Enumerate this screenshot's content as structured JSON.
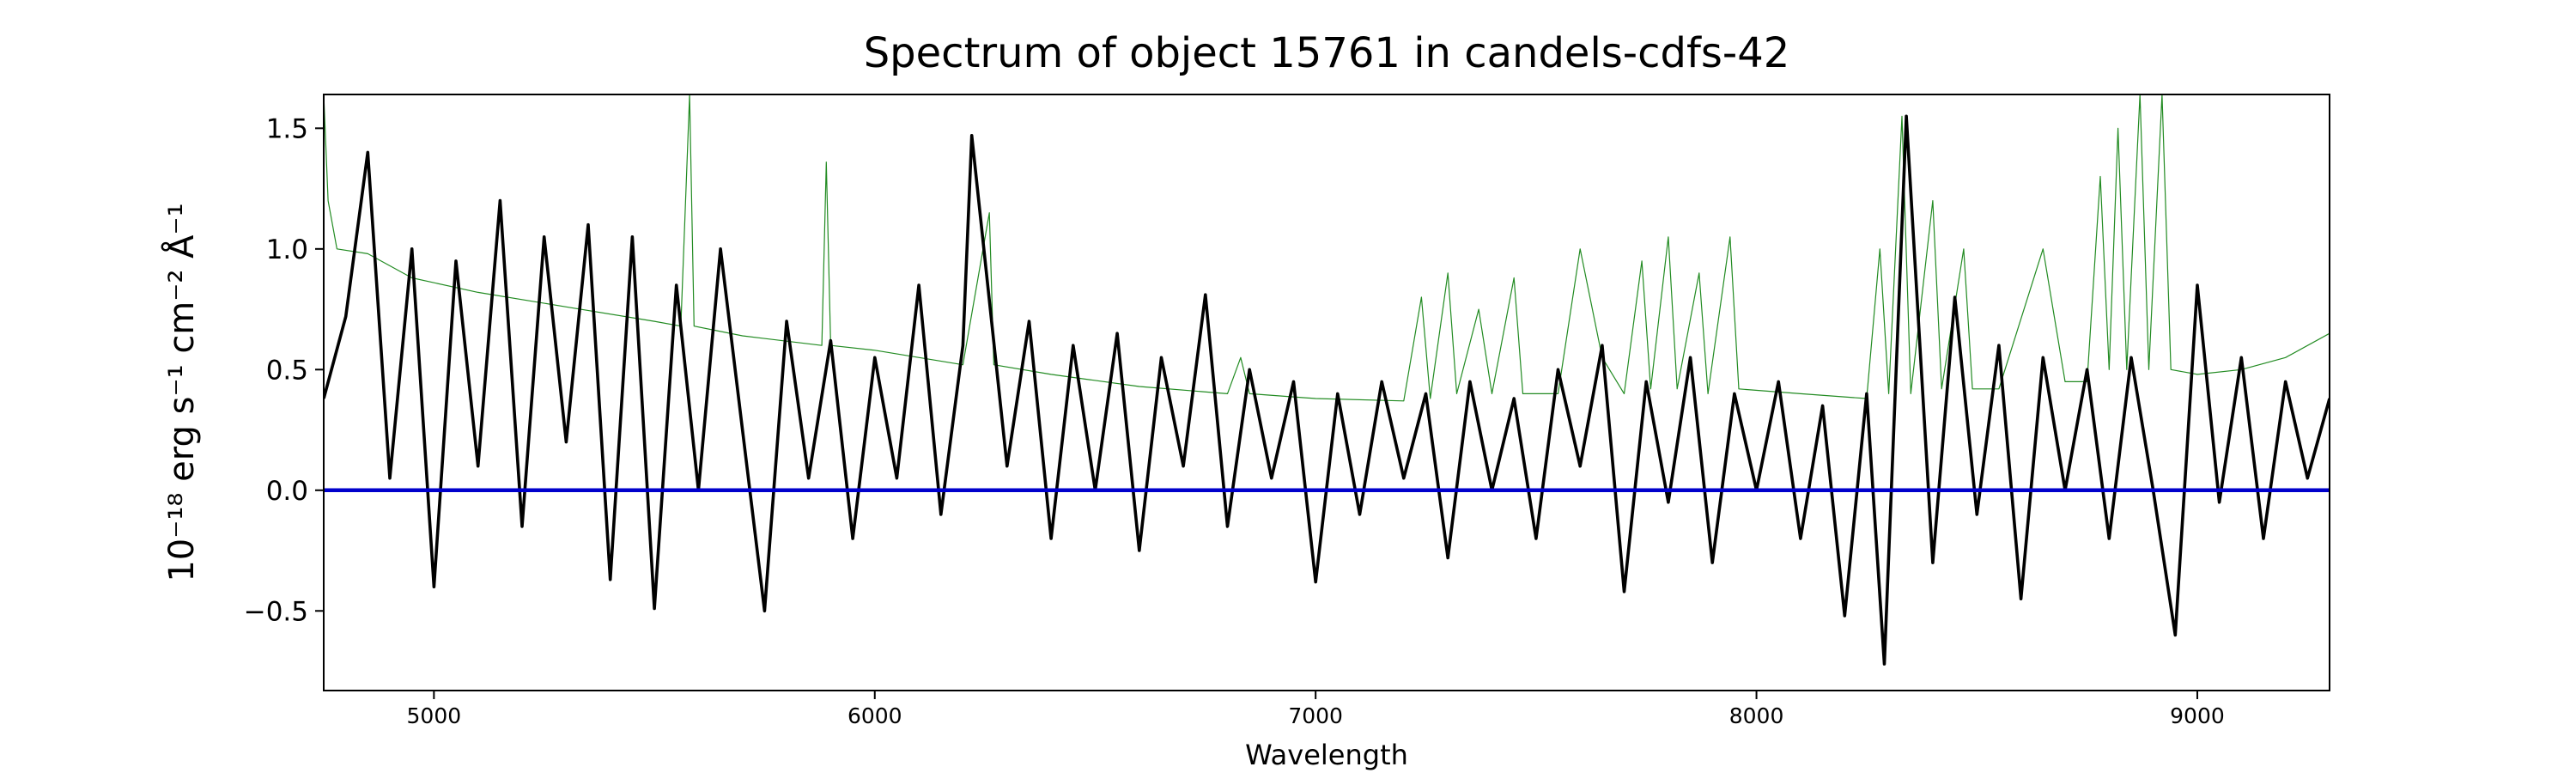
{
  "chart_data": {
    "type": "line",
    "title": "Spectrum of object 15761 in candels-cdfs-42",
    "x_label": "Wavelength",
    "y_label": "10⁻¹⁸ erg s⁻¹ cm⁻² Å⁻¹",
    "xlim": [
      4750,
      9300
    ],
    "ylim": [
      -0.83,
      1.64
    ],
    "xticks": [
      5000,
      6000,
      7000,
      8000,
      9000
    ],
    "yticks": [
      {
        "value": -0.5,
        "label": "−0.5"
      },
      {
        "value": 0,
        "label": "0.0"
      },
      0.5,
      {
        "value": 1,
        "label": "1.0"
      },
      1.5
    ],
    "series": [
      {
        "color": "#228b22",
        "width": 1.2,
        "x": [
          4750,
          4760,
          4780,
          4850,
          4950,
          5100,
          5300,
          5500,
          5560,
          5580,
          5590,
          5700,
          5880,
          5890,
          5900,
          6000,
          6200,
          6260,
          6270,
          6400,
          6600,
          6800,
          6830,
          6850,
          7000,
          7200,
          7240,
          7260,
          7300,
          7320,
          7370,
          7400,
          7450,
          7470,
          7550,
          7600,
          7650,
          7700,
          7740,
          7760,
          7800,
          7820,
          7870,
          7890,
          7940,
          7960,
          8100,
          8250,
          8280,
          8300,
          8330,
          8350,
          8400,
          8420,
          8470,
          8490,
          8550,
          8650,
          8700,
          8750,
          8780,
          8800,
          8820,
          8840,
          8870,
          8890,
          8920,
          8940,
          9000,
          9100,
          9200,
          9300
        ],
        "values": [
          1.64,
          1.2,
          1.0,
          0.98,
          0.88,
          0.82,
          0.76,
          0.7,
          0.68,
          1.64,
          0.68,
          0.64,
          0.6,
          1.36,
          0.6,
          0.58,
          0.52,
          1.15,
          0.52,
          0.48,
          0.43,
          0.4,
          0.55,
          0.4,
          0.38,
          0.37,
          0.8,
          0.38,
          0.9,
          0.4,
          0.75,
          0.4,
          0.88,
          0.4,
          0.4,
          1.0,
          0.55,
          0.4,
          0.95,
          0.42,
          1.05,
          0.42,
          0.9,
          0.4,
          1.05,
          0.42,
          0.4,
          0.38,
          1.0,
          0.4,
          1.55,
          0.4,
          1.2,
          0.42,
          1.0,
          0.42,
          0.42,
          1.0,
          0.45,
          0.45,
          1.3,
          0.5,
          1.5,
          0.5,
          1.64,
          0.5,
          1.64,
          0.5,
          0.48,
          0.5,
          0.55,
          0.65
        ]
      },
      {
        "color": "#000000",
        "width": 3.6,
        "x": [
          4750,
          4800,
          4850,
          4900,
          4950,
          5000,
          5050,
          5100,
          5150,
          5200,
          5250,
          5300,
          5350,
          5400,
          5450,
          5500,
          5550,
          5600,
          5650,
          5700,
          5750,
          5800,
          5850,
          5900,
          5950,
          6000,
          6050,
          6100,
          6150,
          6200,
          6220,
          6300,
          6350,
          6400,
          6450,
          6500,
          6550,
          6600,
          6650,
          6700,
          6750,
          6800,
          6850,
          6900,
          6950,
          7000,
          7050,
          7100,
          7150,
          7200,
          7250,
          7300,
          7350,
          7400,
          7450,
          7500,
          7550,
          7600,
          7650,
          7700,
          7750,
          7800,
          7850,
          7900,
          7950,
          8000,
          8050,
          8100,
          8150,
          8200,
          8250,
          8290,
          8340,
          8400,
          8450,
          8500,
          8550,
          8600,
          8650,
          8700,
          8750,
          8800,
          8850,
          8900,
          8950,
          9000,
          9050,
          9100,
          9150,
          9200,
          9250,
          9300
        ],
        "values": [
          0.38,
          0.72,
          1.4,
          0.05,
          1.0,
          -0.4,
          0.95,
          0.1,
          1.2,
          -0.15,
          1.05,
          0.2,
          1.1,
          -0.37,
          1.05,
          -0.49,
          0.85,
          0.0,
          1.0,
          0.25,
          -0.5,
          0.7,
          0.05,
          0.62,
          -0.2,
          0.55,
          0.05,
          0.85,
          -0.1,
          0.6,
          1.47,
          0.1,
          0.7,
          -0.2,
          0.6,
          0.0,
          0.65,
          -0.25,
          0.55,
          0.1,
          0.81,
          -0.15,
          0.5,
          0.05,
          0.45,
          -0.38,
          0.4,
          -0.1,
          0.45,
          0.05,
          0.4,
          -0.28,
          0.45,
          0.0,
          0.38,
          -0.2,
          0.5,
          0.1,
          0.6,
          -0.42,
          0.45,
          -0.05,
          0.55,
          -0.3,
          0.4,
          0.0,
          0.45,
          -0.2,
          0.35,
          -0.52,
          0.4,
          -0.72,
          1.55,
          -0.3,
          0.8,
          -0.1,
          0.6,
          -0.45,
          0.55,
          0.0,
          0.5,
          -0.2,
          0.55,
          0.0,
          -0.6,
          0.85,
          -0.05,
          0.55,
          -0.2,
          0.45,
          0.05,
          0.38
        ]
      },
      {
        "color": "#0000cc",
        "width": 4.5,
        "x": [
          4750,
          9300
        ],
        "values": [
          0,
          0
        ]
      }
    ]
  }
}
